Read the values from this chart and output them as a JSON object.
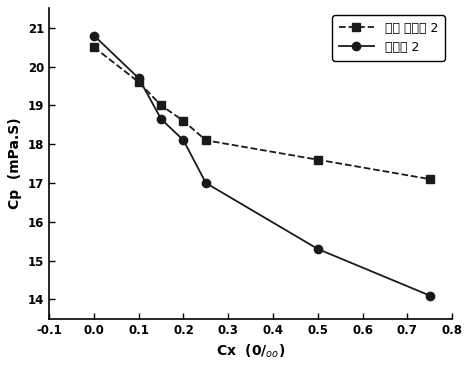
{
  "series1_label": "对照 降粘剂 2",
  "series2_label": "降粘剂 2",
  "series1_x": [
    0.0,
    0.1,
    0.15,
    0.2,
    0.25,
    0.5,
    0.75
  ],
  "series1_y": [
    20.5,
    19.6,
    19.0,
    18.6,
    18.1,
    17.6,
    17.1
  ],
  "series2_x": [
    0.0,
    0.1,
    0.15,
    0.2,
    0.25,
    0.5,
    0.75
  ],
  "series2_y": [
    20.8,
    19.7,
    18.65,
    18.1,
    17.0,
    15.3,
    14.1
  ],
  "xlabel_main": "Cx  (0/",
  "xlabel_sub": "oo",
  "ylabel": "Cp  (mPa.S)",
  "xlim": [
    -0.1,
    0.8
  ],
  "ylim": [
    13.5,
    21.5
  ],
  "xticks": [
    -0.1,
    0.0,
    0.1,
    0.2,
    0.3,
    0.4,
    0.5,
    0.6,
    0.7,
    0.8
  ],
  "yticks": [
    14,
    15,
    16,
    17,
    18,
    19,
    20,
    21
  ],
  "line_color": "#1a1a1a",
  "marker_series1": "s",
  "marker_series2": "o",
  "markersize": 6
}
